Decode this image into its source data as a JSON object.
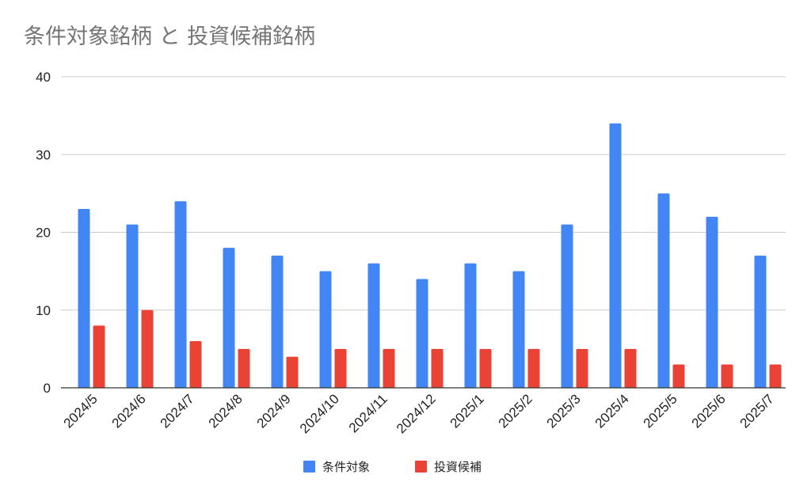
{
  "chart_data": {
    "type": "bar",
    "title": "条件対象銘柄 と 投資候補銘柄",
    "xlabel": "",
    "ylabel": "",
    "ylim": [
      0,
      40
    ],
    "yticks": [
      "0",
      "10",
      "20",
      "30",
      "40"
    ],
    "grid": true,
    "legend_position": "bottom",
    "categories": [
      "2024/5",
      "2024/6",
      "2024/7",
      "2024/8",
      "2024/9",
      "2024/10",
      "2024/11",
      "2024/12",
      "2025/1",
      "2025/2",
      "2025/3",
      "2025/4",
      "2025/5",
      "2025/6",
      "2025/7"
    ],
    "series": [
      {
        "name": "条件対象",
        "color": "#4285F4",
        "values": [
          23,
          21,
          24,
          18,
          17,
          15,
          16,
          14,
          16,
          15,
          21,
          34,
          25,
          22,
          17
        ]
      },
      {
        "name": "投資候補",
        "color": "#EA4335",
        "values": [
          8,
          10,
          6,
          5,
          4,
          5,
          5,
          5,
          5,
          5,
          5,
          5,
          3,
          3,
          3
        ]
      }
    ]
  }
}
